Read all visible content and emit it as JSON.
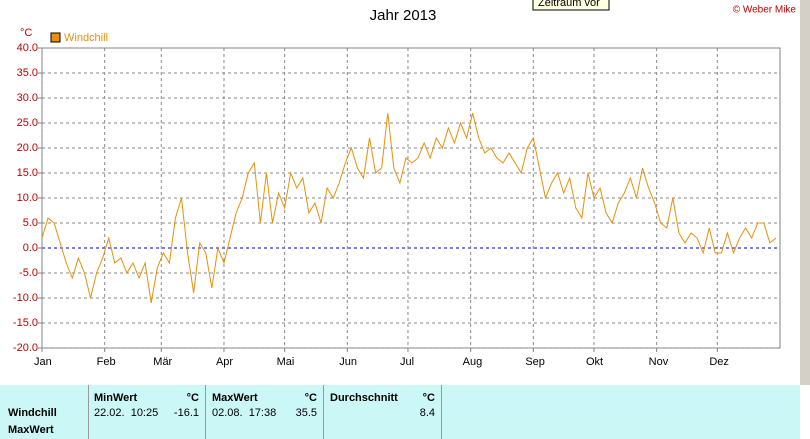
{
  "chart_data": {
    "type": "line",
    "title": "Jahr 2013",
    "ylabel": "°C",
    "tooltip": "Zeitraum vor",
    "credit": "© Weber Mike",
    "x": [
      0,
      3,
      6,
      9,
      12,
      15,
      18,
      21,
      24,
      27,
      30,
      33,
      36,
      39,
      42,
      45,
      48,
      51,
      54,
      57,
      60,
      63,
      66,
      69,
      72,
      75,
      78,
      81,
      84,
      87,
      90,
      93,
      96,
      99,
      102,
      105,
      108,
      111,
      114,
      117,
      120,
      123,
      126,
      129,
      132,
      135,
      138,
      141,
      144,
      147,
      150,
      153,
      156,
      159,
      162,
      165,
      168,
      171,
      174,
      177,
      180,
      183,
      186,
      189,
      192,
      195,
      198,
      201,
      204,
      207,
      210,
      213,
      216,
      219,
      222,
      225,
      228,
      231,
      234,
      237,
      240,
      243,
      246,
      249,
      252,
      255,
      258,
      261,
      264,
      267,
      270,
      273,
      276,
      279,
      282,
      285,
      288,
      291,
      294,
      297,
      300,
      303,
      306,
      309,
      312,
      315,
      318,
      321,
      324,
      327,
      330,
      333,
      336,
      339,
      342,
      345,
      348,
      351,
      354,
      357,
      360,
      363
    ],
    "series": [
      {
        "name": "Windchill",
        "color": "#e8900a",
        "values": [
          2,
          6,
          5,
          1,
          -3,
          -6,
          -2,
          -5,
          -10,
          -5,
          -2,
          2,
          -3,
          -2,
          -5,
          -3,
          -6,
          -3,
          -11,
          -4,
          -1,
          -3,
          6,
          10,
          -1,
          -9,
          1,
          -1,
          -8,
          0,
          -3,
          2,
          7,
          10,
          15,
          17,
          5,
          15,
          5,
          11,
          8,
          15,
          12,
          14,
          7,
          9,
          5,
          12,
          10,
          13,
          17,
          20,
          16,
          14,
          22,
          15,
          16,
          27,
          16,
          13,
          18,
          17,
          18,
          21,
          18,
          22,
          20,
          24,
          21,
          25,
          22,
          27,
          22,
          19,
          20,
          18,
          17,
          19,
          17,
          15,
          20,
          22,
          16,
          10,
          13,
          15,
          11,
          14,
          8,
          6,
          15,
          10,
          12,
          7,
          5,
          9,
          11,
          14,
          10,
          16,
          12,
          9,
          5,
          4,
          10,
          3,
          1,
          3,
          2,
          -1,
          4,
          -1,
          -1,
          3,
          -1,
          2,
          4,
          2,
          5,
          5,
          1,
          2
        ]
      }
    ],
    "xlim": [
      0,
      365
    ],
    "xticks": [
      {
        "value": 0,
        "label": "Jan"
      },
      {
        "value": 31,
        "label": "Feb"
      },
      {
        "value": 59,
        "label": "Mär"
      },
      {
        "value": 90,
        "label": "Apr"
      },
      {
        "value": 120,
        "label": "Mai"
      },
      {
        "value": 151,
        "label": "Jun"
      },
      {
        "value": 181,
        "label": "Jul"
      },
      {
        "value": 212,
        "label": "Aug"
      },
      {
        "value": 243,
        "label": "Sep"
      },
      {
        "value": 273,
        "label": "Okt"
      },
      {
        "value": 304,
        "label": "Nov"
      },
      {
        "value": 334,
        "label": "Dez"
      }
    ],
    "ylim": [
      -20,
      40
    ],
    "yticks": [
      {
        "value": -20,
        "label": "-20.0"
      },
      {
        "value": -15,
        "label": "-15.0"
      },
      {
        "value": -10,
        "label": "-10.0"
      },
      {
        "value": -5,
        "label": "-5.0"
      },
      {
        "value": 0,
        "label": "0.0"
      },
      {
        "value": 5,
        "label": "5.0"
      },
      {
        "value": 10,
        "label": "10.0"
      },
      {
        "value": 15,
        "label": "15.0"
      },
      {
        "value": 20,
        "label": "20.0"
      },
      {
        "value": 25,
        "label": "25.0"
      },
      {
        "value": 30,
        "label": "30.0"
      },
      {
        "value": 35,
        "label": "35.0"
      },
      {
        "value": 40,
        "label": "40.0"
      }
    ],
    "grid": true
  },
  "table": {
    "row_labels": [
      "Windchill",
      "MaxWert"
    ],
    "columns": [
      {
        "header": "MinWert",
        "unit": "°C",
        "time": "22.02.  10:25",
        "value": "-16.1"
      },
      {
        "header": "MaxWert",
        "unit": "°C",
        "time": "02.08.  17:38",
        "value": "35.5"
      },
      {
        "header": "Durchschnitt",
        "unit": "°C",
        "value": "8.4"
      }
    ]
  }
}
